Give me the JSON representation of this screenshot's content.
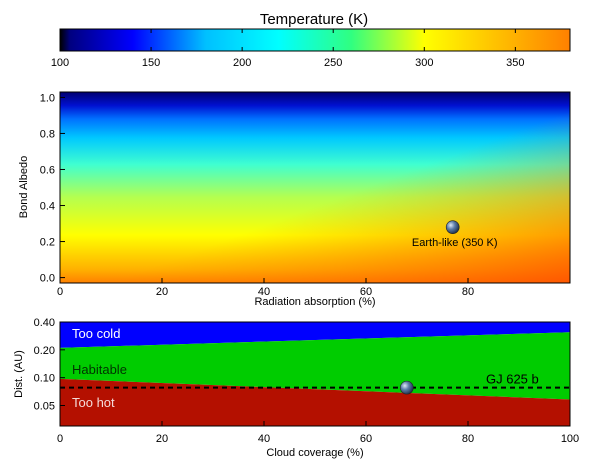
{
  "chart_data": [
    {
      "type": "colorbar",
      "title": "Temperature (K)",
      "range": [
        100,
        380
      ],
      "ticks": [
        100,
        150,
        200,
        250,
        300,
        350
      ],
      "colormap": [
        "#000000",
        "#000080",
        "#0000ff",
        "#00c0ff",
        "#00ffff",
        "#30ff80",
        "#ffff00",
        "#ffc000",
        "#ff8000"
      ]
    },
    {
      "type": "heatmap",
      "xlabel": "Radiation absorption (%)",
      "ylabel": "Bond Albedo",
      "xlim": [
        0,
        100
      ],
      "ylim": [
        -0.03,
        1.03
      ],
      "xticks": [
        0,
        20,
        40,
        60,
        80
      ],
      "yticks": [
        0.0,
        0.2,
        0.4,
        0.6,
        0.8,
        1.0
      ],
      "ytick_labels": [
        "0.0",
        "0.2",
        "0.4",
        "0.6",
        "0.8",
        "1.0"
      ],
      "point": {
        "x": 77,
        "y": 0.28,
        "label": "Earth-like (350 K)"
      }
    },
    {
      "type": "area",
      "xlabel": "Cloud coverage (%)",
      "ylabel": "Dist. (AU)",
      "xlim": [
        0,
        100
      ],
      "ylim": [
        0.03,
        0.4
      ],
      "yscale": "log",
      "xticks": [
        0,
        20,
        40,
        60,
        80,
        100
      ],
      "yticks": [
        0.05,
        0.1,
        0.2,
        0.4
      ],
      "ytick_labels": [
        "0.05",
        "0.10",
        "0.20",
        "0.40"
      ],
      "regions": [
        {
          "name": "Too cold",
          "color": "#0000ff"
        },
        {
          "name": "Habitable",
          "color": "#00cc00"
        },
        {
          "name": "Too hot",
          "color": "#b41000"
        }
      ],
      "boundaries": {
        "inner_edge": {
          "x": [
            0,
            100
          ],
          "y": [
            0.097,
            0.058
          ]
        },
        "outer_edge": {
          "x": [
            0,
            100
          ],
          "y": [
            0.21,
            0.31
          ]
        }
      },
      "planet_line": {
        "label": "GJ 625 b",
        "y": 0.078
      },
      "point": {
        "x": 68,
        "y": 0.078
      }
    }
  ]
}
